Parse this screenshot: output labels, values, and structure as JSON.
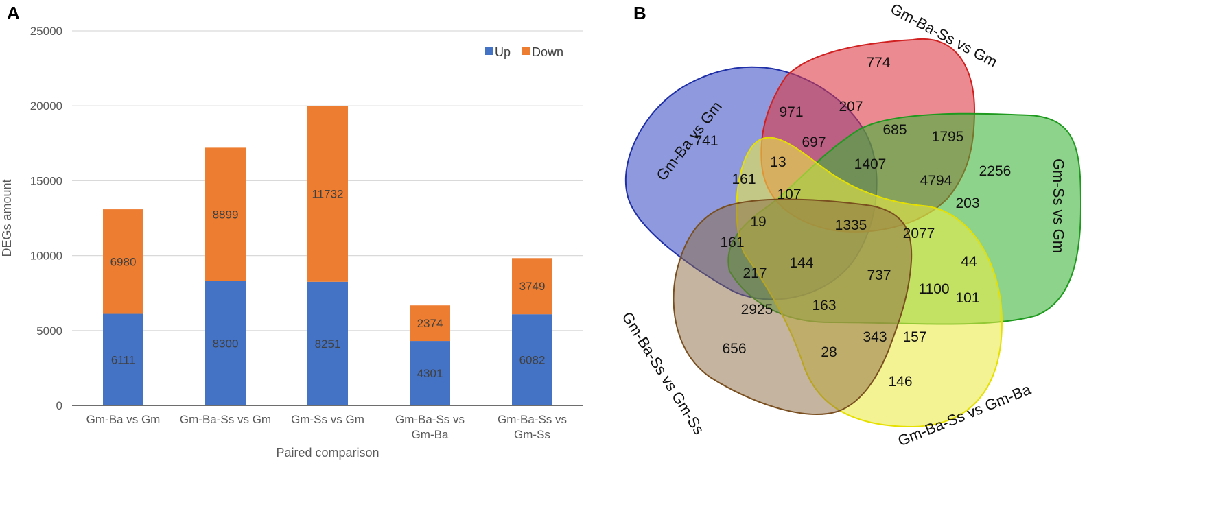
{
  "panel_a": {
    "letter": "A"
  },
  "panel_b": {
    "letter": "B"
  },
  "chart_data": [
    {
      "type": "bar",
      "stacked": true,
      "title": "",
      "xlabel": "Paired comparison",
      "ylabel": "DEGs amount",
      "ylim": [
        0,
        25000
      ],
      "yticks": [
        0,
        5000,
        10000,
        15000,
        20000,
        25000
      ],
      "categories": [
        [
          "Gm-Ba vs Gm"
        ],
        [
          "Gm-Ba-Ss vs Gm"
        ],
        [
          "Gm-Ss vs Gm"
        ],
        [
          "Gm-Ba-Ss vs",
          "Gm-Ba"
        ],
        [
          "Gm-Ba-Ss vs",
          "Gm-Ss"
        ]
      ],
      "series": [
        {
          "name": "Up",
          "color": "#4472C4",
          "values": [
            6111,
            8300,
            8251,
            4301,
            6082
          ]
        },
        {
          "name": "Down",
          "color": "#ED7D31",
          "values": [
            6980,
            8899,
            11732,
            2374,
            3749
          ]
        }
      ],
      "legend": "top-right",
      "grid": true
    },
    {
      "type": "venn",
      "sets": [
        {
          "name": "Gm-Ba vs Gm",
          "color": "#3f52c0"
        },
        {
          "name": "Gm-Ba-Ss vs Gm",
          "color": "#e0383f"
        },
        {
          "name": "Gm-Ss vs Gm",
          "color": "#2ea52a"
        },
        {
          "name": "Gm-Ba-Ss vs Gm-Ba",
          "color": "#eaea30"
        },
        {
          "name": "Gm-Ba-Ss vs Gm-Ss",
          "color": "#8a6a45"
        }
      ],
      "region_values": [
        "774",
        "971",
        "207",
        "741",
        "697",
        "685",
        "1795",
        "13",
        "1407",
        "2256",
        "4794",
        "161",
        "107",
        "203",
        "19",
        "1335",
        "2077",
        "161",
        "44",
        "144",
        "217",
        "737",
        "1100",
        "101",
        "2925",
        "163",
        "343",
        "157",
        "656",
        "28",
        "146"
      ]
    }
  ]
}
